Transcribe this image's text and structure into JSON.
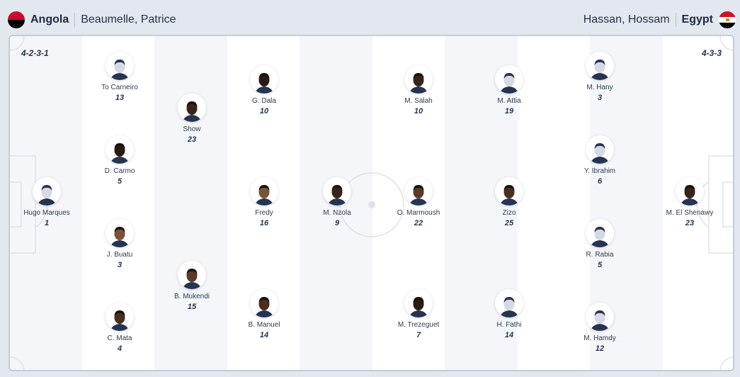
{
  "home": {
    "team": "Angola",
    "coach": "Beaumelle, Patrice",
    "formation": "4-2-3-1",
    "flag_colors": [
      "#cc092f",
      "#000000"
    ],
    "players": [
      {
        "name": "Hugo Marques",
        "number": "1",
        "avatar": "placeholder"
      },
      {
        "name": "To Carneiro",
        "number": "13",
        "avatar": "placeholder"
      },
      {
        "name": "D. Carmo",
        "number": "5",
        "avatar": "photo"
      },
      {
        "name": "J. Buatu",
        "number": "3",
        "avatar": "photo"
      },
      {
        "name": "C. Mata",
        "number": "4",
        "avatar": "photo"
      },
      {
        "name": "Show",
        "number": "23",
        "avatar": "photo"
      },
      {
        "name": "B. Mukendi",
        "number": "15",
        "avatar": "photo"
      },
      {
        "name": "G. Dala",
        "number": "10",
        "avatar": "photo"
      },
      {
        "name": "Fredy",
        "number": "16",
        "avatar": "photo"
      },
      {
        "name": "B. Manuel",
        "number": "14",
        "avatar": "photo"
      },
      {
        "name": "M. Nzola",
        "number": "9",
        "avatar": "photo"
      }
    ]
  },
  "away": {
    "team": "Egypt",
    "coach": "Hassan, Hossam",
    "formation": "4-3-3",
    "flag_colors": [
      "#ce1126",
      "#ffffff",
      "#000000"
    ],
    "players": [
      {
        "name": "M. Salah",
        "number": "10",
        "avatar": "photo"
      },
      {
        "name": "O. Marmoush",
        "number": "22",
        "avatar": "photo"
      },
      {
        "name": "M. Trezeguet",
        "number": "7",
        "avatar": "photo"
      },
      {
        "name": "M. Attia",
        "number": "19",
        "avatar": "placeholder"
      },
      {
        "name": "Zizo",
        "number": "25",
        "avatar": "photo"
      },
      {
        "name": "H. Fathi",
        "number": "14",
        "avatar": "placeholder"
      },
      {
        "name": "M. Hany",
        "number": "3",
        "avatar": "placeholder"
      },
      {
        "name": "Y. Ibrahim",
        "number": "6",
        "avatar": "placeholder"
      },
      {
        "name": "R. Rabia",
        "number": "5",
        "avatar": "placeholder"
      },
      {
        "name": "M. Hamdy",
        "number": "12",
        "avatar": "placeholder"
      },
      {
        "name": "M. El Shenawy",
        "number": "23",
        "avatar": "photo"
      }
    ]
  }
}
